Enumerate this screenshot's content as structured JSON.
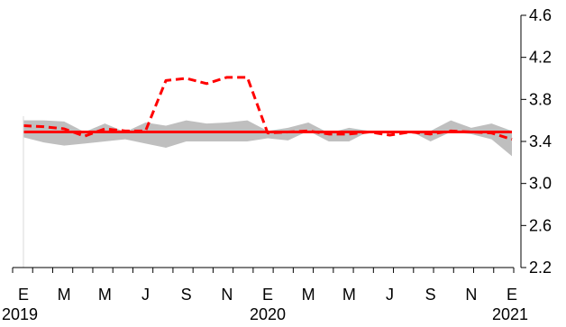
{
  "chart_data": {
    "type": "line",
    "title": "",
    "xlabel": "",
    "ylabel": "",
    "ylim": [
      2.2,
      4.6
    ],
    "yticks": [
      2.2,
      2.6,
      3.0,
      3.4,
      3.8,
      4.2,
      4.6
    ],
    "y_axis_position": "right",
    "grid": false,
    "legend": "none",
    "x_month_labels": [
      "E",
      "M",
      "M",
      "J",
      "S",
      "N",
      "E",
      "M",
      "M",
      "J",
      "S",
      "N",
      "E"
    ],
    "x_year_labels": [
      {
        "label": "2019",
        "month_index": 0
      },
      {
        "label": "2020",
        "month_index": 12
      },
      {
        "label": "2021",
        "month_index": 24
      }
    ],
    "band": {
      "color": "#bfbfbf",
      "upper": [
        3.6,
        3.6,
        3.59,
        3.49,
        3.57,
        3.49,
        3.58,
        3.55,
        3.6,
        3.57,
        3.58,
        3.6,
        3.5,
        3.53,
        3.58,
        3.48,
        3.53,
        3.5,
        3.5,
        3.5,
        3.5,
        3.6,
        3.53,
        3.57,
        3.5
      ],
      "lower": [
        3.44,
        3.39,
        3.36,
        3.38,
        3.4,
        3.42,
        3.38,
        3.34,
        3.4,
        3.4,
        3.4,
        3.4,
        3.43,
        3.41,
        3.5,
        3.4,
        3.4,
        3.5,
        3.5,
        3.5,
        3.4,
        3.49,
        3.47,
        3.42,
        3.26
      ]
    },
    "series": [
      {
        "style": "dashed",
        "color": "#ff0000",
        "values": [
          3.55,
          3.54,
          3.52,
          3.45,
          3.52,
          3.5,
          3.5,
          3.98,
          4.0,
          3.95,
          4.01,
          4.01,
          3.48,
          3.49,
          3.5,
          3.47,
          3.47,
          3.49,
          3.46,
          3.49,
          3.47,
          3.5,
          3.49,
          3.48,
          3.42
        ]
      },
      {
        "style": "solid",
        "color": "#ff0000",
        "values": [
          3.49,
          3.49,
          3.49,
          3.49,
          3.49,
          3.49,
          3.49,
          3.49,
          3.49,
          3.49,
          3.49,
          3.49,
          3.49,
          3.49,
          3.49,
          3.49,
          3.49,
          3.49,
          3.49,
          3.49,
          3.49,
          3.49,
          3.49,
          3.49,
          3.49
        ]
      }
    ]
  }
}
